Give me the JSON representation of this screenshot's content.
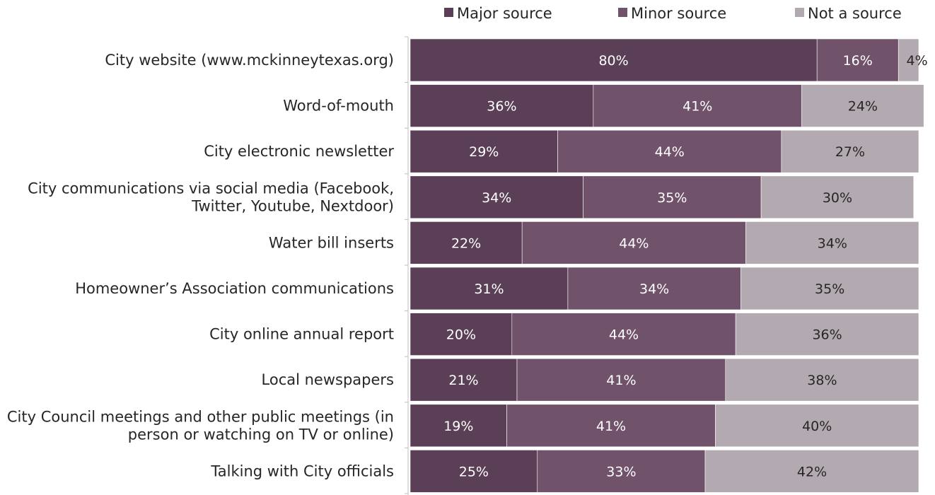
{
  "chart_data": {
    "type": "bar",
    "orientation": "horizontal",
    "stacked": true,
    "title": "",
    "xlabel": "",
    "ylabel": "",
    "xlim": [
      0,
      100
    ],
    "legend_position": "top",
    "categories": [
      [
        "City website (www.mckinneytexas.org)"
      ],
      [
        "Word-of-mouth"
      ],
      [
        "City electronic newsletter"
      ],
      [
        "City communications via social media (Facebook,",
        "Twitter, Youtube, Nextdoor)"
      ],
      [
        "Water bill inserts"
      ],
      [
        "Homeowner’s Association communications"
      ],
      [
        "City online annual report"
      ],
      [
        "Local newspapers"
      ],
      [
        "City Council meetings and other public meetings (in",
        "person or watching on TV or online)"
      ],
      [
        "Talking with City officials"
      ]
    ],
    "series": [
      {
        "name": "Major source",
        "color": "#5a3f56",
        "label_color": "#ffffff",
        "values": [
          80,
          36,
          29,
          34,
          22,
          31,
          20,
          21,
          19,
          25
        ],
        "labels": [
          "80%",
          "36%",
          "29%",
          "34%",
          "22%",
          "31%",
          "20%",
          "21%",
          "19%",
          "25%"
        ]
      },
      {
        "name": "Minor source",
        "color": "#70526b",
        "label_color": "#ffffff",
        "values": [
          16,
          41,
          44,
          35,
          44,
          34,
          44,
          41,
          41,
          33
        ],
        "labels": [
          "16%",
          "41%",
          "44%",
          "35%",
          "44%",
          "34%",
          "44%",
          "41%",
          "41%",
          "33%"
        ]
      },
      {
        "name": "Not a source",
        "color": "#b2a9b1",
        "label_color": "#262626",
        "values": [
          4,
          24,
          27,
          30,
          34,
          35,
          36,
          38,
          40,
          42
        ],
        "labels": [
          "4%",
          "24%",
          "27%",
          "30%",
          "34%",
          "35%",
          "36%",
          "38%",
          "40%",
          "42%"
        ]
      }
    ]
  }
}
